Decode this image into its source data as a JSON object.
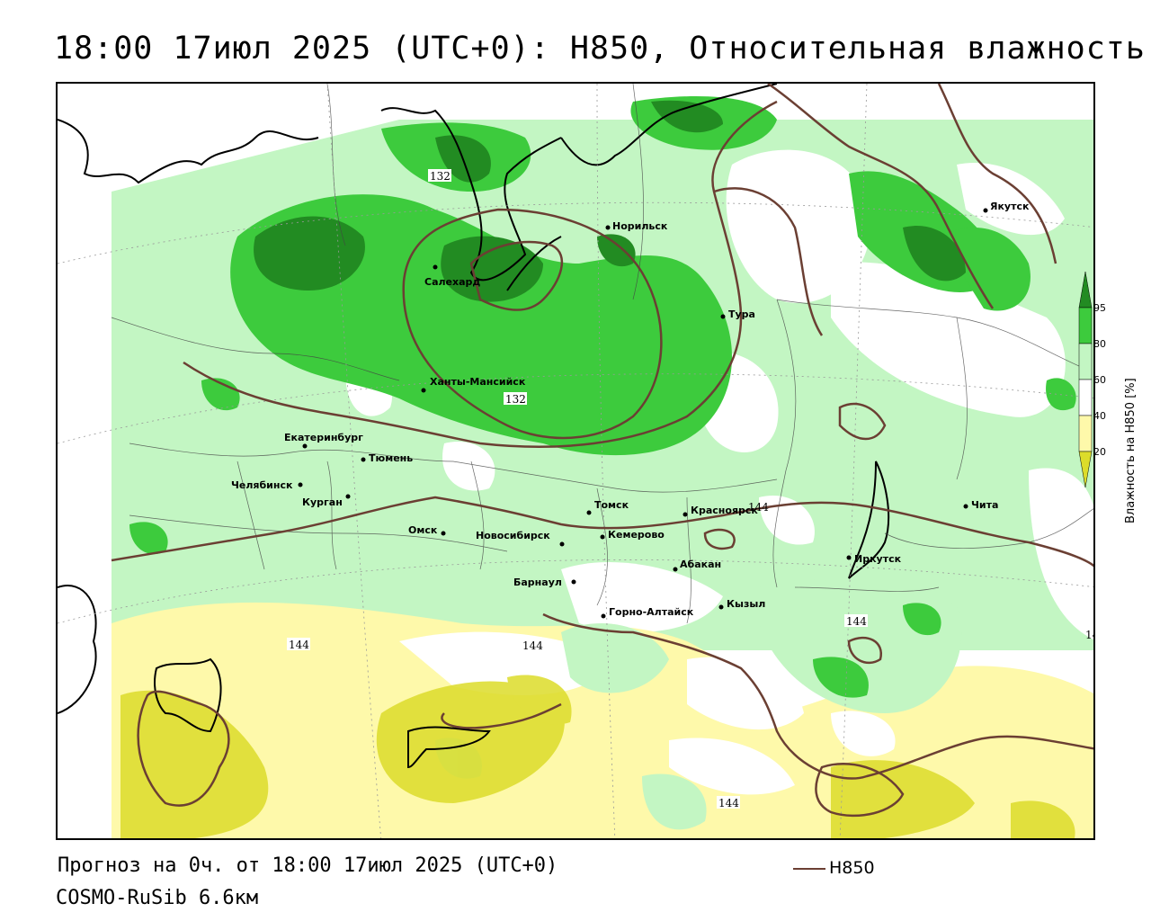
{
  "header": {
    "title": "18:00 17июл 2025 (UTC+0): H850, Относительная влажность"
  },
  "footer": {
    "forecast": "Прогноз на 0ч. от 18:00 17июл 2025 (UTC+0)",
    "model": "COSMO-RuSib 6.6км",
    "legend_label": "H850"
  },
  "colorbar": {
    "title": "Влажность на H850 [%]",
    "ticks": [
      "95",
      "80",
      "60",
      "40",
      "20"
    ],
    "colors": {
      "c95": "#228b22",
      "c80": "#3dcb3d",
      "c60": "#c3f6c3",
      "c40": "#ffffff",
      "c20": "#fef9aa",
      "c0": "#dcdc2a"
    }
  },
  "contour_labels": [
    "132",
    "132",
    "144",
    "144",
    "144",
    "144",
    "144",
    "14"
  ],
  "cities": [
    "Норильск",
    "Якутск",
    "Салехард",
    "Тура",
    "Ханты-Мансийск",
    "Екатеринбург",
    "Тюмень",
    "Челябинск",
    "Курган",
    "Омск",
    "Новосибирск",
    "Томск",
    "Кемерово",
    "Красноярск",
    "Абакан",
    "Барнаул",
    "Горно-Алтайск",
    "Кызыл",
    "Иркутск",
    "Чита"
  ]
}
